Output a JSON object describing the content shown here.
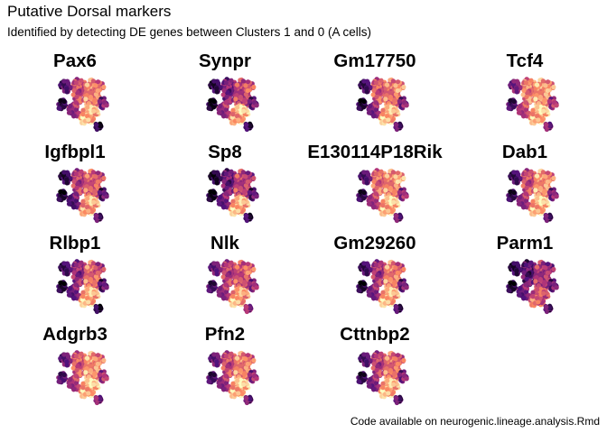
{
  "title": "Putative Dorsal markers",
  "subtitle": "Identified by detecting DE genes between Clusters 1 and 0 (A cells)",
  "caption": "Code available on neurogenic.lineage.analysis.Rmd",
  "colors": {
    "low": "#000004",
    "mid1": "#51127c",
    "mid2": "#b73779",
    "mid3": "#fc8961",
    "high": "#fcfdbf"
  },
  "chart_data": {
    "type": "scatter",
    "panels": [
      {
        "gene": "Pax6",
        "expression": [
          0.55,
          0.75,
          0.25,
          0.85,
          0.15,
          0.65,
          0.45,
          0.9,
          0.35,
          0.05
        ]
      },
      {
        "gene": "Synpr",
        "expression": [
          0.35,
          0.55,
          0.15,
          0.9,
          0.05,
          0.6,
          0.45,
          0.8,
          0.3,
          0.1
        ]
      },
      {
        "gene": "Gm17750",
        "expression": [
          0.6,
          0.7,
          0.2,
          0.85,
          0.1,
          0.75,
          0.4,
          0.9,
          0.35,
          0.2
        ]
      },
      {
        "gene": "Tcf4",
        "expression": [
          0.7,
          0.8,
          0.35,
          0.9,
          0.2,
          0.75,
          0.55,
          0.85,
          0.45,
          0.3
        ]
      },
      {
        "gene": "Igfbpl1",
        "expression": [
          0.5,
          0.65,
          0.15,
          0.85,
          0.1,
          0.55,
          0.3,
          0.8,
          0.25,
          0.2
        ]
      },
      {
        "gene": "Sp8",
        "expression": [
          0.3,
          0.55,
          0.1,
          0.85,
          0.05,
          0.45,
          0.35,
          0.9,
          0.25,
          0.1
        ]
      },
      {
        "gene": "E130114P18Rik",
        "expression": [
          0.65,
          0.75,
          0.25,
          0.9,
          0.15,
          0.8,
          0.5,
          0.85,
          0.4,
          0.25
        ]
      },
      {
        "gene": "Dab1",
        "expression": [
          0.55,
          0.8,
          0.2,
          0.9,
          0.15,
          0.7,
          0.45,
          0.85,
          0.35,
          0.2
        ]
      },
      {
        "gene": "Rlbp1",
        "expression": [
          0.4,
          0.7,
          0.2,
          0.85,
          0.1,
          0.5,
          0.35,
          0.9,
          0.25,
          0.05
        ]
      },
      {
        "gene": "Nlk",
        "expression": [
          0.5,
          0.6,
          0.3,
          0.8,
          0.2,
          0.65,
          0.45,
          0.9,
          0.4,
          0.35
        ]
      },
      {
        "gene": "Gm29260",
        "expression": [
          0.45,
          0.75,
          0.2,
          0.85,
          0.1,
          0.6,
          0.4,
          0.9,
          0.3,
          0.15
        ]
      },
      {
        "gene": "Parm1",
        "expression": [
          0.25,
          0.5,
          0.15,
          0.6,
          0.1,
          0.4,
          0.35,
          0.7,
          0.3,
          0.2
        ]
      },
      {
        "gene": "Adgrb3",
        "expression": [
          0.6,
          0.8,
          0.3,
          0.9,
          0.25,
          0.7,
          0.5,
          0.85,
          0.45,
          0.3
        ]
      },
      {
        "gene": "Pfn2",
        "expression": [
          0.55,
          0.75,
          0.3,
          0.9,
          0.2,
          0.65,
          0.45,
          0.85,
          0.4,
          0.25
        ]
      },
      {
        "gene": "Cttnbp2",
        "expression": [
          0.5,
          0.7,
          0.25,
          0.85,
          0.15,
          0.6,
          0.4,
          0.9,
          0.35,
          0.2
        ]
      }
    ]
  }
}
